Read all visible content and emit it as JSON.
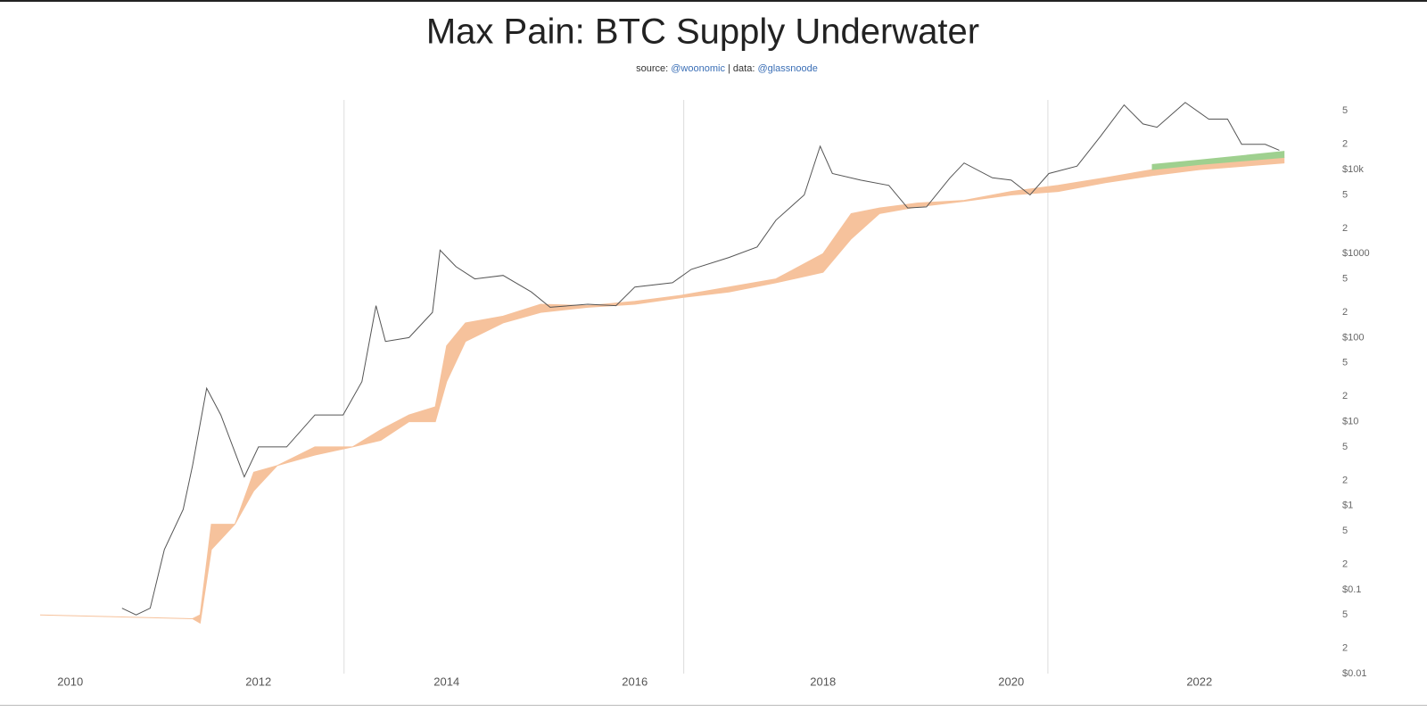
{
  "chart_data": {
    "type": "line",
    "title": "Max Pain: BTC Supply Underwater",
    "subtitle": [
      "source: ",
      "@woonomic",
      " | data: ",
      "@glassnoode"
    ],
    "log_y": true,
    "xlim": [
      2009.68,
      2022.95
    ],
    "xticks": [
      2010,
      2012,
      2014,
      2016,
      2018,
      2020,
      2022
    ],
    "xgrid_lines": [
      2012.91,
      2016.52,
      2020.39
    ],
    "ylim": [
      0.01,
      100000
    ],
    "yticks": [
      {
        "value": 0.01,
        "label": "$0.01"
      },
      {
        "value": 0.02,
        "label": "2"
      },
      {
        "value": 0.05,
        "label": "5"
      },
      {
        "value": 0.1,
        "label": "$0.1"
      },
      {
        "value": 0.2,
        "label": "2"
      },
      {
        "value": 0.5,
        "label": "5"
      },
      {
        "value": 1,
        "label": "$1"
      },
      2,
      5,
      {
        "value": 10,
        "label": "$10"
      },
      {
        "value": 20,
        "label": "2"
      },
      {
        "value": 50,
        "label": "5"
      },
      {
        "value": 100,
        "label": "$100"
      },
      {
        "value": 200,
        "label": "2"
      },
      {
        "value": 500,
        "label": "5"
      },
      {
        "value": 1000,
        "label": "$1000"
      },
      {
        "value": 2000,
        "label": "2"
      },
      {
        "value": 5000,
        "label": "5"
      },
      {
        "value": 10000,
        "label": "$10k"
      },
      {
        "value": 20000,
        "label": "2"
      },
      {
        "value": 50000,
        "label": "5"
      }
    ],
    "bands": [
      {
        "color": "#f6c29c",
        "x": [
          2009.68,
          2011.3,
          2011.38,
          2011.5,
          2011.75,
          2011.95,
          2012.2,
          2012.6,
          2013.0,
          2013.3,
          2013.6,
          2013.88,
          2014.0,
          2014.2,
          2014.6,
          2015.0,
          2015.5,
          2016.0,
          2016.5,
          2017.0,
          2017.5,
          2018.0,
          2018.3,
          2018.6,
          2019.0,
          2019.5,
          2020.0,
          2020.5,
          2021.0,
          2021.5,
          2022.0,
          2022.9
        ],
        "low": [
          0.05,
          0.045,
          0.04,
          0.3,
          0.6,
          1.5,
          3,
          4,
          5,
          6,
          10,
          10,
          30,
          90,
          150,
          200,
          230,
          250,
          300,
          350,
          450,
          600,
          1500,
          3000,
          3600,
          4200,
          5000,
          5500,
          7000,
          8500,
          10000,
          12000
        ],
        "high": [
          0.05,
          0.045,
          0.05,
          0.6,
          0.6,
          2.5,
          3,
          5,
          5,
          8,
          12,
          15,
          80,
          150,
          180,
          250,
          240,
          270,
          320,
          400,
          500,
          1000,
          3000,
          3500,
          4000,
          4300,
          5500,
          6500,
          8000,
          10000,
          11500,
          14000
        ]
      },
      {
        "color": "#9fd08f",
        "x": [
          2021.5,
          2022.0,
          2022.9
        ],
        "low": [
          10000,
          11500,
          14000
        ],
        "high": [
          11500,
          13000,
          16500
        ]
      }
    ],
    "price": {
      "color": "#555555",
      "x": [
        2010.55,
        2010.7,
        2010.85,
        2011.0,
        2011.2,
        2011.3,
        2011.45,
        2011.6,
        2011.85,
        2012.0,
        2012.3,
        2012.6,
        2012.9,
        2013.1,
        2013.25,
        2013.35,
        2013.6,
        2013.85,
        2013.93,
        2014.1,
        2014.3,
        2014.6,
        2014.9,
        2015.1,
        2015.5,
        2015.8,
        2016.0,
        2016.4,
        2016.6,
        2017.0,
        2017.3,
        2017.5,
        2017.8,
        2017.97,
        2018.1,
        2018.4,
        2018.7,
        2018.9,
        2019.1,
        2019.35,
        2019.5,
        2019.8,
        2020.0,
        2020.2,
        2020.4,
        2020.7,
        2020.95,
        2021.2,
        2021.4,
        2021.55,
        2021.85,
        2022.1,
        2022.3,
        2022.45,
        2022.7,
        2022.85
      ],
      "values": [
        0.06,
        0.05,
        0.06,
        0.3,
        0.9,
        3,
        25,
        12,
        2.2,
        5,
        5,
        12,
        12,
        30,
        240,
        90,
        100,
        200,
        1100,
        700,
        500,
        550,
        350,
        230,
        250,
        240,
        400,
        450,
        650,
        900,
        1200,
        2500,
        5000,
        19000,
        9000,
        7500,
        6500,
        3500,
        3600,
        8000,
        12000,
        8000,
        7500,
        5000,
        9000,
        11000,
        25000,
        59000,
        35000,
        32000,
        63000,
        40000,
        40000,
        20000,
        20000,
        17000
      ]
    }
  }
}
